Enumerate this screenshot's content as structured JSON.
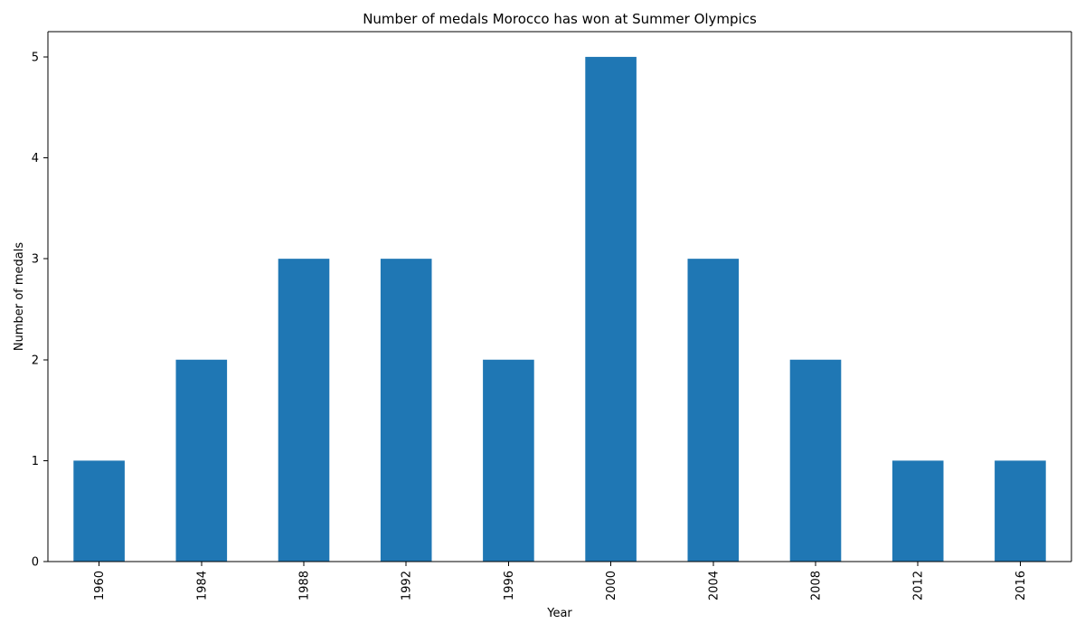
{
  "chart_data": {
    "type": "bar",
    "title": "Number of medals Morocco has won at Summer Olympics",
    "xlabel": "Year",
    "ylabel": "Number of medals",
    "categories": [
      "1960",
      "1984",
      "1988",
      "1992",
      "1996",
      "2000",
      "2004",
      "2008",
      "2012",
      "2016"
    ],
    "values": [
      1,
      2,
      3,
      3,
      2,
      5,
      3,
      2,
      1,
      1
    ],
    "ylim": [
      0,
      5.25
    ],
    "y_ticks": [
      0,
      1,
      2,
      3,
      4,
      5
    ],
    "x_tick_rotation": "vertical",
    "grid": false,
    "legend": "none",
    "bar_color": "#1f77b4"
  }
}
